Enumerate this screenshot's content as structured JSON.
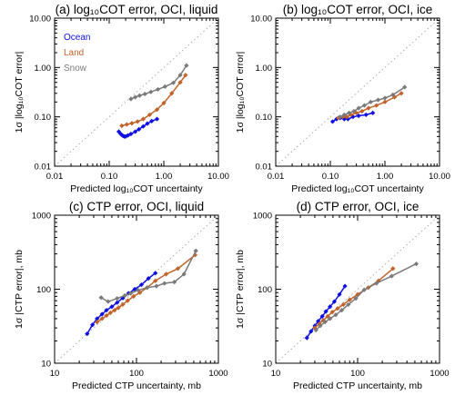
{
  "colors": {
    "ocean": "#1010e0",
    "land": "#c0622a",
    "snow": "#7a7a7a",
    "oneone": "#aaaaaa"
  },
  "chart_data": [
    {
      "type": "line",
      "title": "(a) log₁₀COT error, OCI, liquid",
      "xlabel": "Predicted log₁₀COT uncertainty",
      "ylabel": "1σ |log₁₀COT error|",
      "xscale": "log",
      "yscale": "log",
      "xlim": [
        0.01,
        10
      ],
      "ylim": [
        0.01,
        10
      ],
      "xticks": [
        "0.01",
        "0.10",
        "1.00",
        "10.00"
      ],
      "yticks": [
        "0.01",
        "0.10",
        "1.00",
        "10.00"
      ],
      "one_to_one": true,
      "legend": [
        "Ocean",
        "Land",
        "Snow"
      ],
      "legend_position": "top-left",
      "series": [
        {
          "name": "Ocean",
          "color": "ocean",
          "x": [
            0.15,
            0.16,
            0.17,
            0.18,
            0.19,
            0.2,
            0.22,
            0.25,
            0.3,
            0.35,
            0.42,
            0.5,
            0.6,
            0.75
          ],
          "y": [
            0.05,
            0.046,
            0.043,
            0.041,
            0.04,
            0.04,
            0.042,
            0.045,
            0.05,
            0.056,
            0.064,
            0.073,
            0.082,
            0.09
          ]
        },
        {
          "name": "Land",
          "color": "land",
          "x": [
            0.17,
            0.21,
            0.26,
            0.33,
            0.42,
            0.55,
            0.75,
            1.0,
            1.4,
            2.0,
            2.5
          ],
          "y": [
            0.066,
            0.07,
            0.074,
            0.08,
            0.09,
            0.11,
            0.14,
            0.19,
            0.3,
            0.5,
            0.7
          ]
        },
        {
          "name": "Snow",
          "color": "snow",
          "x": [
            0.25,
            0.3,
            0.36,
            0.45,
            0.58,
            0.78,
            1.05,
            1.5,
            2.0,
            2.6
          ],
          "y": [
            0.23,
            0.25,
            0.27,
            0.29,
            0.32,
            0.36,
            0.41,
            0.49,
            0.7,
            1.1
          ]
        }
      ]
    },
    {
      "type": "line",
      "title": "(b) log₁₀COT error, OCI, ice",
      "xlabel": "Predicted log₁₀COT uncertainty",
      "ylabel": "1σ |log₁₀COT error|",
      "xscale": "log",
      "yscale": "log",
      "xlim": [
        0.01,
        10
      ],
      "ylim": [
        0.01,
        10
      ],
      "xticks": [
        "0.01",
        "0.10",
        "1.00",
        "10.00"
      ],
      "yticks": [
        "0.01",
        "0.10",
        "1.00",
        "10.00"
      ],
      "one_to_one": true,
      "series": [
        {
          "name": "Ocean",
          "color": "ocean",
          "x": [
            0.11,
            0.13,
            0.15,
            0.18,
            0.21,
            0.26,
            0.33,
            0.45,
            0.6
          ],
          "y": [
            0.08,
            0.09,
            0.095,
            0.09,
            0.09,
            0.1,
            0.105,
            0.11,
            0.12
          ]
        },
        {
          "name": "Land",
          "color": "land",
          "x": [
            0.14,
            0.17,
            0.2,
            0.24,
            0.3,
            0.38,
            0.5,
            0.7,
            1.0,
            1.5,
            2.0
          ],
          "y": [
            0.095,
            0.1,
            0.1,
            0.11,
            0.12,
            0.13,
            0.15,
            0.17,
            0.2,
            0.25,
            0.3
          ]
        },
        {
          "name": "Snow",
          "color": "snow",
          "x": [
            0.15,
            0.18,
            0.22,
            0.27,
            0.33,
            0.42,
            0.55,
            0.75,
            1.0,
            1.4,
            2.3
          ],
          "y": [
            0.1,
            0.11,
            0.12,
            0.13,
            0.15,
            0.17,
            0.2,
            0.22,
            0.24,
            0.28,
            0.4
          ]
        }
      ]
    },
    {
      "type": "line",
      "title": "(c) CTP error, OCI, liquid",
      "xlabel": "Predicted CTP uncertainty, mb",
      "ylabel": "1σ |CTP error|, mb",
      "xscale": "log",
      "yscale": "log",
      "xlim": [
        10,
        1000
      ],
      "ylim": [
        10,
        1000
      ],
      "xticks": [
        "10",
        "100",
        "1000"
      ],
      "yticks": [
        "10",
        "100",
        "1000"
      ],
      "one_to_one": true,
      "series": [
        {
          "name": "Ocean",
          "color": "ocean",
          "x": [
            25,
            29,
            33,
            38,
            43,
            50,
            58,
            68,
            80,
            95,
            115,
            140,
            170
          ],
          "y": [
            25,
            33,
            40,
            46,
            52,
            58,
            66,
            76,
            88,
            100,
            115,
            140,
            165
          ]
        },
        {
          "name": "Land",
          "color": "land",
          "x": [
            33,
            38,
            43,
            48,
            54,
            60,
            68,
            78,
            92,
            110,
            135,
            170,
            230,
            320,
            520
          ],
          "y": [
            36,
            40,
            44,
            48,
            52,
            56,
            62,
            70,
            80,
            90,
            105,
            130,
            160,
            190,
            290
          ]
        },
        {
          "name": "Snow",
          "color": "snow",
          "x": [
            37,
            45,
            58,
            72,
            85,
            105,
            135,
            175,
            220,
            290,
            380,
            530
          ],
          "y": [
            77,
            68,
            75,
            82,
            88,
            97,
            105,
            110,
            120,
            125,
            160,
            330
          ]
        }
      ]
    },
    {
      "type": "line",
      "title": "(d) CTP error, OCI, ice",
      "xlabel": "Predicted CTP uncertainty, mb",
      "ylabel": "1σ |CTP error|, mb",
      "xscale": "log",
      "yscale": "log",
      "xlim": [
        10,
        1000
      ],
      "ylim": [
        10,
        1000
      ],
      "xticks": [
        "10",
        "100",
        "1000"
      ],
      "yticks": [
        "10",
        "100",
        "1000"
      ],
      "one_to_one": true,
      "series": [
        {
          "name": "Ocean",
          "color": "ocean",
          "x": [
            24,
            27,
            30,
            33,
            37,
            41,
            46,
            52,
            60,
            70
          ],
          "y": [
            22,
            27,
            32,
            37,
            43,
            50,
            58,
            68,
            85,
            110
          ]
        },
        {
          "name": "Land",
          "color": "land",
          "x": [
            30,
            34,
            38,
            43,
            49,
            57,
            67,
            80,
            100,
            135,
            180,
            270
          ],
          "y": [
            30,
            34,
            38,
            43,
            49,
            55,
            62,
            72,
            85,
            105,
            130,
            190
          ]
        },
        {
          "name": "Snow",
          "color": "snow",
          "x": [
            31,
            35,
            40,
            46,
            54,
            64,
            77,
            95,
            120,
            170,
            260,
            520
          ],
          "y": [
            28,
            32,
            36,
            40,
            45,
            52,
            62,
            75,
            98,
            120,
            150,
            220
          ]
        }
      ]
    }
  ]
}
